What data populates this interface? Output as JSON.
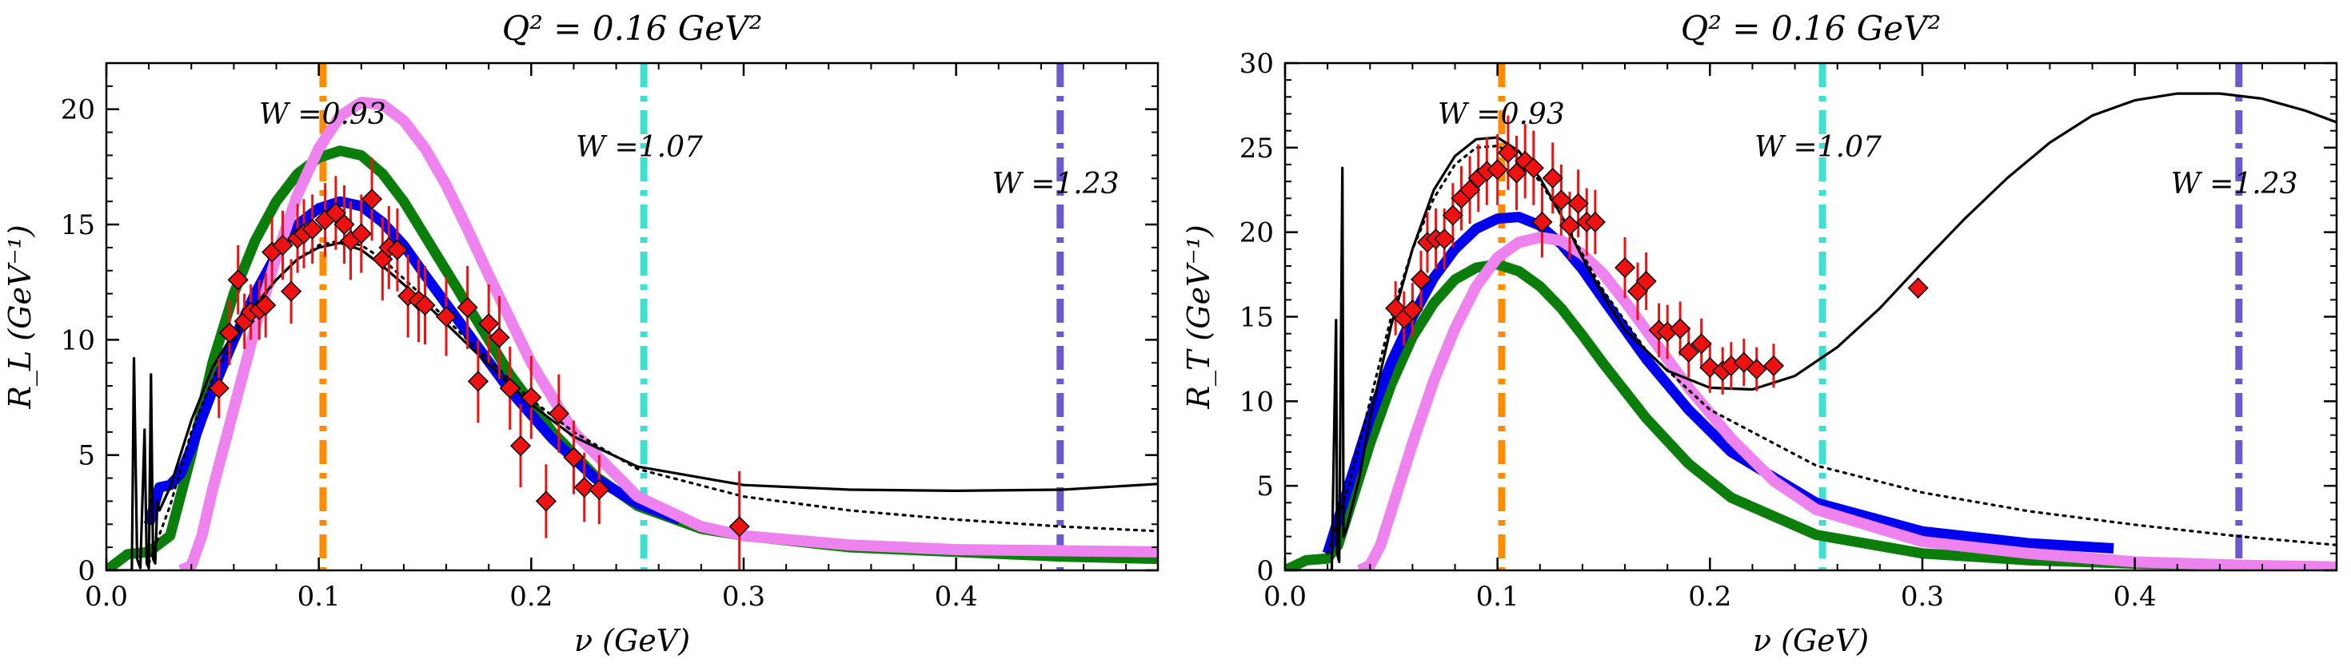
{
  "chart_data": [
    {
      "type": "line",
      "title": "Q² = 0.16 GeV²",
      "xlabel": "ν (GeV)",
      "ylabel": "R_L (GeV⁻¹)",
      "xlim": [
        0.0,
        0.495
      ],
      "ylim": [
        0,
        22
      ],
      "xticks": [
        0.0,
        0.1,
        0.2,
        0.3,
        0.4
      ],
      "xticklabels": [
        "0.0",
        "0.1",
        "0.2",
        "0.3",
        "0.4"
      ],
      "yticks": [
        0,
        5,
        10,
        15,
        20
      ],
      "yticklabels": [
        "0",
        "5",
        "10",
        "15",
        "20"
      ],
      "vlines": [
        {
          "x": 0.102,
          "label": "W =0.93",
          "color": "#ff8c00"
        },
        {
          "x": 0.253,
          "label": "W =1.07",
          "color": "#40e0d0"
        },
        {
          "x": 0.449,
          "label": "W =1.23",
          "color": "#6a5acd"
        }
      ],
      "series": [
        {
          "style": "black-thin",
          "color": "#000000",
          "x": [
            0.0,
            0.012,
            0.013,
            0.0145,
            0.016,
            0.018,
            0.019,
            0.02,
            0.021,
            0.022,
            0.023,
            0.024,
            0.025,
            0.03,
            0.04,
            0.05,
            0.06,
            0.07,
            0.08,
            0.09,
            0.1,
            0.11,
            0.12,
            0.13,
            0.15,
            0.17,
            0.2,
            0.22,
            0.25,
            0.3,
            0.35,
            0.4,
            0.45,
            0.495
          ],
          "y": [
            0.0,
            0.0,
            9.2,
            0.5,
            0.1,
            6.1,
            0.3,
            0.1,
            8.5,
            0.5,
            0.3,
            3.0,
            2.6,
            3.6,
            6.5,
            8.8,
            10.3,
            11.5,
            12.6,
            13.5,
            14.0,
            14.2,
            13.9,
            13.2,
            11.6,
            9.8,
            7.2,
            5.8,
            4.5,
            3.7,
            3.5,
            3.45,
            3.5,
            3.75
          ]
        },
        {
          "style": "black-dotted",
          "color": "#000000",
          "x": [
            0.02,
            0.03,
            0.04,
            0.05,
            0.06,
            0.07,
            0.08,
            0.09,
            0.1,
            0.11,
            0.12,
            0.13,
            0.15,
            0.17,
            0.2,
            0.22,
            0.25,
            0.3,
            0.35,
            0.4,
            0.45,
            0.495
          ],
          "y": [
            0.3,
            2.8,
            6.0,
            8.3,
            10.0,
            11.4,
            12.6,
            13.5,
            14.1,
            14.3,
            14.1,
            13.5,
            11.8,
            10.0,
            7.4,
            6.0,
            4.4,
            3.2,
            2.6,
            2.2,
            1.9,
            1.7
          ]
        },
        {
          "style": "green-thick",
          "color": "#0a7d0a",
          "x": [
            0.0,
            0.01,
            0.02,
            0.03,
            0.04,
            0.05,
            0.06,
            0.07,
            0.08,
            0.09,
            0.1,
            0.11,
            0.12,
            0.13,
            0.14,
            0.15,
            0.17,
            0.19,
            0.21,
            0.23,
            0.25,
            0.28,
            0.3,
            0.35,
            0.4,
            0.45,
            0.495
          ],
          "y": [
            0.0,
            0.7,
            0.8,
            1.5,
            5.0,
            9.0,
            12.0,
            14.3,
            16.0,
            17.2,
            17.9,
            18.2,
            18.0,
            17.2,
            16.0,
            14.5,
            11.5,
            8.5,
            6.0,
            4.1,
            2.8,
            1.8,
            1.5,
            1.0,
            0.8,
            0.6,
            0.5
          ]
        },
        {
          "style": "blue-thick",
          "color": "#0000ee",
          "x": [
            0.02,
            0.025,
            0.03,
            0.035,
            0.04,
            0.045,
            0.05,
            0.06,
            0.07,
            0.08,
            0.09,
            0.1,
            0.11,
            0.12,
            0.13,
            0.14,
            0.15,
            0.17,
            0.19,
            0.21,
            0.23,
            0.25,
            0.27
          ],
          "y": [
            2.0,
            3.6,
            3.7,
            4.2,
            5.3,
            6.6,
            7.8,
            10.0,
            12.0,
            13.7,
            15.0,
            15.7,
            16.0,
            15.8,
            15.1,
            14.1,
            12.8,
            10.3,
            7.8,
            5.7,
            4.0,
            2.9,
            2.2
          ]
        },
        {
          "style": "pink-thick",
          "color": "#ee82ee",
          "x": [
            0.035,
            0.04,
            0.045,
            0.05,
            0.06,
            0.07,
            0.08,
            0.09,
            0.1,
            0.11,
            0.12,
            0.13,
            0.14,
            0.15,
            0.16,
            0.17,
            0.18,
            0.2,
            0.22,
            0.25,
            0.28,
            0.3,
            0.35,
            0.4,
            0.45,
            0.495
          ],
          "y": [
            0.0,
            0.2,
            1.5,
            3.5,
            7.0,
            10.5,
            13.6,
            16.3,
            18.3,
            19.7,
            20.3,
            20.2,
            19.5,
            18.3,
            16.7,
            14.8,
            12.8,
            9.0,
            6.0,
            3.2,
            1.9,
            1.5,
            1.1,
            0.9,
            0.85,
            0.8
          ]
        }
      ],
      "points": {
        "x": [
          0.053,
          0.058,
          0.062,
          0.065,
          0.068,
          0.072,
          0.075,
          0.078,
          0.083,
          0.087,
          0.09,
          0.093,
          0.097,
          0.103,
          0.108,
          0.112,
          0.115,
          0.12,
          0.125,
          0.13,
          0.133,
          0.137,
          0.142,
          0.147,
          0.15,
          0.16,
          0.17,
          0.175,
          0.18,
          0.185,
          0.19,
          0.195,
          0.2,
          0.207,
          0.213,
          0.22,
          0.225,
          0.232,
          0.298
        ],
        "y": [
          7.9,
          10.3,
          12.6,
          10.8,
          11.2,
          11.3,
          11.5,
          13.8,
          14.1,
          12.1,
          14.4,
          14.6,
          14.8,
          15.2,
          15.5,
          15.0,
          14.3,
          14.6,
          16.1,
          13.5,
          14.0,
          13.9,
          11.9,
          11.7,
          11.5,
          11.0,
          11.4,
          8.2,
          10.7,
          10.1,
          7.9,
          5.4,
          7.5,
          3.0,
          6.8,
          4.9,
          3.6,
          3.5,
          1.9
        ],
        "err": [
          1.3,
          1.4,
          1.5,
          1.2,
          1.2,
          1.3,
          1.4,
          1.5,
          1.5,
          1.4,
          1.5,
          1.5,
          1.5,
          1.6,
          1.6,
          1.7,
          1.7,
          1.7,
          1.8,
          1.8,
          1.8,
          1.8,
          1.8,
          1.8,
          1.7,
          1.7,
          1.8,
          1.8,
          1.7,
          1.8,
          1.8,
          1.8,
          1.8,
          1.6,
          1.7,
          1.6,
          1.5,
          1.5,
          2.4
        ]
      }
    },
    {
      "type": "line",
      "title": "Q² = 0.16 GeV²",
      "xlabel": "ν (GeV)",
      "ylabel": "R_T (GeV⁻¹)",
      "xlim": [
        0.0,
        0.495
      ],
      "ylim": [
        0,
        30
      ],
      "xticks": [
        0.0,
        0.1,
        0.2,
        0.3,
        0.4
      ],
      "xticklabels": [
        "0.0",
        "0.1",
        "0.2",
        "0.3",
        "0.4"
      ],
      "yticks": [
        0,
        5,
        10,
        15,
        20,
        25,
        30
      ],
      "yticklabels": [
        "0",
        "5",
        "10",
        "15",
        "20",
        "25",
        "30"
      ],
      "vlines": [
        {
          "x": 0.102,
          "label": "W =0.93",
          "color": "#ff8c00"
        },
        {
          "x": 0.253,
          "label": "W =1.07",
          "color": "#40e0d0"
        },
        {
          "x": 0.449,
          "label": "W =1.23",
          "color": "#6a5acd"
        }
      ],
      "series": [
        {
          "style": "black-thin",
          "color": "#000000",
          "x": [
            0.0,
            0.022,
            0.024,
            0.0245,
            0.0255,
            0.027,
            0.0275,
            0.029,
            0.03,
            0.035,
            0.04,
            0.05,
            0.06,
            0.07,
            0.08,
            0.09,
            0.1,
            0.11,
            0.12,
            0.13,
            0.14,
            0.15,
            0.16,
            0.18,
            0.2,
            0.22,
            0.24,
            0.26,
            0.28,
            0.3,
            0.32,
            0.34,
            0.36,
            0.38,
            0.4,
            0.42,
            0.44,
            0.46,
            0.48,
            0.495
          ],
          "y": [
            0.0,
            0.0,
            14.8,
            1.0,
            0.5,
            23.8,
            2.0,
            2.5,
            3.0,
            5.5,
            9.0,
            14.5,
            19.0,
            22.5,
            24.5,
            25.5,
            25.6,
            24.8,
            23.2,
            21.0,
            18.5,
            16.2,
            14.2,
            11.8,
            10.8,
            10.7,
            11.5,
            13.2,
            15.5,
            18.2,
            20.8,
            23.2,
            25.3,
            26.9,
            27.8,
            28.2,
            28.2,
            27.9,
            27.2,
            26.5
          ]
        },
        {
          "style": "black-dotted",
          "color": "#000000",
          "x": [
            0.02,
            0.03,
            0.04,
            0.05,
            0.06,
            0.07,
            0.08,
            0.09,
            0.1,
            0.11,
            0.12,
            0.13,
            0.14,
            0.15,
            0.17,
            0.2,
            0.25,
            0.3,
            0.35,
            0.4,
            0.45,
            0.495
          ],
          "y": [
            1.0,
            5.0,
            10.0,
            15.0,
            19.0,
            22.0,
            24.0,
            25.0,
            25.1,
            24.4,
            23.0,
            21.0,
            18.7,
            16.5,
            13.0,
            9.5,
            6.2,
            4.6,
            3.5,
            2.7,
            2.0,
            1.5
          ]
        },
        {
          "style": "green-thick",
          "color": "#0a7d0a",
          "x": [
            0.0,
            0.01,
            0.02,
            0.025,
            0.03,
            0.04,
            0.05,
            0.06,
            0.07,
            0.08,
            0.09,
            0.1,
            0.11,
            0.12,
            0.13,
            0.14,
            0.15,
            0.17,
            0.19,
            0.21,
            0.25,
            0.3,
            0.35,
            0.4,
            0.45,
            0.495
          ],
          "y": [
            0.0,
            0.6,
            0.7,
            1.5,
            3.5,
            7.5,
            11.0,
            13.8,
            15.8,
            17.2,
            17.9,
            18.1,
            17.7,
            16.8,
            15.5,
            13.9,
            12.2,
            9.0,
            6.3,
            4.3,
            2.1,
            1.0,
            0.6,
            0.4,
            0.3,
            0.2
          ]
        },
        {
          "style": "blue-thick",
          "color": "#0000ee",
          "x": [
            0.02,
            0.03,
            0.04,
            0.05,
            0.06,
            0.07,
            0.08,
            0.09,
            0.1,
            0.11,
            0.12,
            0.13,
            0.14,
            0.15,
            0.17,
            0.19,
            0.21,
            0.25,
            0.3,
            0.35,
            0.39
          ],
          "y": [
            1.0,
            5.0,
            9.0,
            12.3,
            15.0,
            17.3,
            19.0,
            20.2,
            20.8,
            20.9,
            20.4,
            19.3,
            17.8,
            16.0,
            12.5,
            9.5,
            7.0,
            4.0,
            2.3,
            1.6,
            1.3
          ]
        },
        {
          "style": "pink-thick",
          "color": "#ee82ee",
          "x": [
            0.035,
            0.04,
            0.045,
            0.05,
            0.06,
            0.07,
            0.08,
            0.09,
            0.1,
            0.11,
            0.12,
            0.13,
            0.14,
            0.15,
            0.16,
            0.17,
            0.19,
            0.21,
            0.23,
            0.25,
            0.3,
            0.35,
            0.4,
            0.45,
            0.495
          ],
          "y": [
            0.0,
            0.3,
            1.5,
            3.5,
            7.5,
            11.2,
            14.3,
            16.8,
            18.5,
            19.4,
            19.7,
            19.5,
            18.7,
            17.5,
            15.9,
            14.2,
            10.8,
            7.8,
            5.3,
            3.6,
            1.7,
            1.0,
            0.5,
            0.3,
            0.2
          ]
        }
      ],
      "points": {
        "x": [
          0.052,
          0.056,
          0.06,
          0.064,
          0.067,
          0.071,
          0.075,
          0.079,
          0.083,
          0.087,
          0.091,
          0.095,
          0.1,
          0.105,
          0.109,
          0.113,
          0.117,
          0.121,
          0.126,
          0.13,
          0.134,
          0.138,
          0.142,
          0.146,
          0.16,
          0.166,
          0.17,
          0.176,
          0.18,
          0.186,
          0.19,
          0.196,
          0.2,
          0.206,
          0.21,
          0.216,
          0.222,
          0.23,
          0.298
        ],
        "y": [
          15.5,
          14.9,
          15.4,
          17.2,
          19.4,
          19.6,
          19.6,
          21.0,
          22.0,
          22.5,
          23.2,
          23.6,
          23.7,
          24.7,
          23.5,
          24.2,
          23.8,
          20.6,
          23.2,
          21.9,
          20.4,
          21.7,
          20.6,
          20.6,
          17.9,
          16.5,
          17.1,
          14.2,
          14.1,
          14.3,
          12.9,
          13.4,
          12.0,
          11.8,
          12.1,
          12.3,
          11.9,
          12.1,
          16.7
        ],
        "err": [
          1.6,
          1.6,
          1.6,
          1.7,
          1.8,
          1.8,
          1.8,
          1.9,
          1.9,
          2.0,
          2.0,
          2.0,
          2.1,
          2.2,
          2.2,
          2.2,
          2.2,
          2.1,
          2.1,
          2.1,
          2.0,
          2.0,
          2.0,
          1.9,
          1.8,
          1.7,
          1.7,
          1.6,
          1.6,
          1.6,
          1.5,
          1.5,
          1.5,
          1.4,
          1.4,
          1.4,
          1.3,
          1.3,
          0.6
        ]
      }
    }
  ]
}
